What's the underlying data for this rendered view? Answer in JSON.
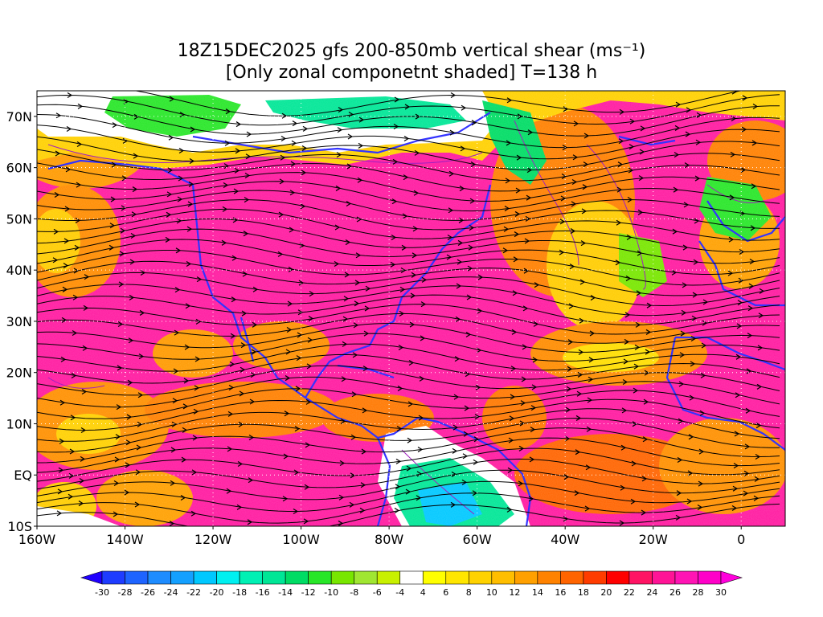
{
  "title": {
    "line1": "18Z15DEC2025 gfs 200-850mb vertical shear (ms⁻¹)",
    "line2": "[Only zonal componetnt shaded] T=138 h"
  },
  "map": {
    "lon_range": [
      -160,
      10
    ],
    "lat_range": [
      -10,
      75
    ],
    "lat_ticks": [
      {
        "label": "70N",
        "lat": 70
      },
      {
        "label": "60N",
        "lat": 60
      },
      {
        "label": "50N",
        "lat": 50
      },
      {
        "label": "40N",
        "lat": 40
      },
      {
        "label": "30N",
        "lat": 30
      },
      {
        "label": "20N",
        "lat": 20
      },
      {
        "label": "10N",
        "lat": 10
      },
      {
        "label": "EQ",
        "lat": 0
      },
      {
        "label": "10S",
        "lat": -10
      }
    ],
    "lon_ticks": [
      {
        "label": "160W",
        "lon": -160
      },
      {
        "label": "140W",
        "lon": -140
      },
      {
        "label": "120W",
        "lon": -120
      },
      {
        "label": "100W",
        "lon": -100
      },
      {
        "label": "80W",
        "lon": -80
      },
      {
        "label": "60W",
        "lon": -60
      },
      {
        "label": "40W",
        "lon": -40
      },
      {
        "label": "20W",
        "lon": -20
      },
      {
        "label": "0",
        "lon": 0
      }
    ],
    "grid": true,
    "coastline_color": "#3333ff",
    "contour_color": "#a020c0",
    "streamline_color": "#000000"
  },
  "colorbar": {
    "labels": [
      "-30",
      "-28",
      "-26",
      "-24",
      "-22",
      "-20",
      "-18",
      "-16",
      "-14",
      "-12",
      "-10",
      "-8",
      "-6",
      "-4",
      "4",
      "6",
      "8",
      "10",
      "12",
      "14",
      "16",
      "18",
      "20",
      "22",
      "24",
      "26",
      "28",
      "30"
    ],
    "colors": [
      "#2000ff",
      "#1e3cff",
      "#1e64ff",
      "#1e8cff",
      "#14a0ff",
      "#00c8ff",
      "#00f0f0",
      "#00f0b4",
      "#00e696",
      "#00dc64",
      "#28e628",
      "#78e600",
      "#a0e632",
      "#c8f000",
      "#ffffff",
      "#ffff00",
      "#ffe600",
      "#ffd200",
      "#ffbe00",
      "#ffa000",
      "#ff8200",
      "#ff6400",
      "#ff3c00",
      "#ff0000",
      "#ff1464",
      "#ff1496",
      "#ff14b4",
      "#ff00c8",
      "#ff00dc"
    ]
  }
}
